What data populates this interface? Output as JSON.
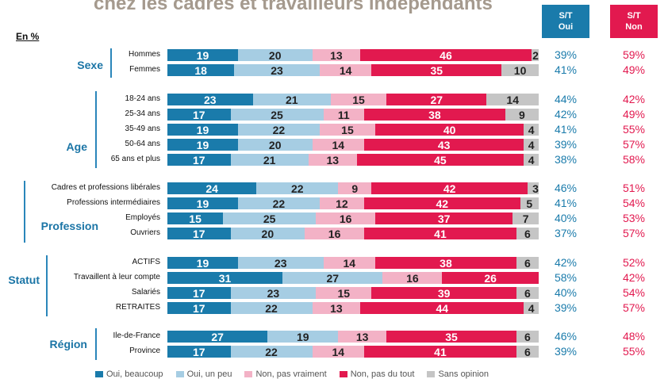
{
  "title": "chez les cadres et travailleurs indépendants",
  "unit_label": "En %",
  "headers": {
    "oui_line1": "S/T",
    "oui_line2": "Oui",
    "non_line1": "S/T",
    "non_line2": "Non"
  },
  "colors": {
    "c0": "#1a7bab",
    "c1": "#a6cde3",
    "c2": "#f3b2c6",
    "c3": "#e2194f",
    "c4": "#c5c5c5"
  },
  "legend": [
    {
      "label": "Oui, beaucoup",
      "color": "#1a7bab"
    },
    {
      "label": "Oui, un peu",
      "color": "#a6cde3"
    },
    {
      "label": "Non, pas vraiment",
      "color": "#f3b2c6"
    },
    {
      "label": "Non, pas du tout",
      "color": "#e2194f"
    },
    {
      "label": "Sans opinion",
      "color": "#c5c5c5"
    }
  ],
  "chart_data": {
    "type": "bar",
    "orientation": "horizontal",
    "stacked": true,
    "xlim": [
      0,
      100
    ],
    "groups": [
      {
        "name": "Sexe",
        "rows": [
          {
            "label": "Hommes",
            "values": [
              19,
              20,
              13,
              46,
              2
            ],
            "st_oui": "39%",
            "st_non": "59%"
          },
          {
            "label": "Femmes",
            "values": [
              18,
              23,
              14,
              35,
              10
            ],
            "st_oui": "41%",
            "st_non": "49%"
          }
        ]
      },
      {
        "name": "Age",
        "rows": [
          {
            "label": "18-24 ans",
            "values": [
              23,
              21,
              15,
              27,
              14
            ],
            "st_oui": "44%",
            "st_non": "42%"
          },
          {
            "label": "25-34 ans",
            "values": [
              17,
              25,
              11,
              38,
              9
            ],
            "st_oui": "42%",
            "st_non": "49%"
          },
          {
            "label": "35-49 ans",
            "values": [
              19,
              22,
              15,
              40,
              4
            ],
            "st_oui": "41%",
            "st_non": "55%"
          },
          {
            "label": "50-64 ans",
            "values": [
              19,
              20,
              14,
              43,
              4
            ],
            "st_oui": "39%",
            "st_non": "57%"
          },
          {
            "label": "65 ans et plus",
            "values": [
              17,
              21,
              13,
              45,
              4
            ],
            "st_oui": "38%",
            "st_non": "58%"
          }
        ]
      },
      {
        "name": "Profession",
        "rows": [
          {
            "label": "Cadres et professions libérales",
            "values": [
              24,
              22,
              9,
              42,
              3
            ],
            "st_oui": "46%",
            "st_non": "51%"
          },
          {
            "label": "Professions intermédiaires",
            "values": [
              19,
              22,
              12,
              42,
              5
            ],
            "st_oui": "41%",
            "st_non": "54%"
          },
          {
            "label": "Employés",
            "values": [
              15,
              25,
              16,
              37,
              7
            ],
            "st_oui": "40%",
            "st_non": "53%"
          },
          {
            "label": "Ouvriers",
            "values": [
              17,
              20,
              16,
              41,
              6
            ],
            "st_oui": "37%",
            "st_non": "57%"
          }
        ]
      },
      {
        "name": "Statut",
        "rows": [
          {
            "label": "ACTIFS",
            "values": [
              19,
              23,
              14,
              38,
              6
            ],
            "st_oui": "42%",
            "st_non": "52%"
          },
          {
            "label": "Travaillent à leur compte",
            "values": [
              31,
              27,
              16,
              26,
              0
            ],
            "st_oui": "58%",
            "st_non": "42%"
          },
          {
            "label": "Salariés",
            "values": [
              17,
              23,
              15,
              39,
              6
            ],
            "st_oui": "40%",
            "st_non": "54%"
          },
          {
            "label": "RETRAITES",
            "values": [
              17,
              22,
              13,
              44,
              4
            ],
            "st_oui": "39%",
            "st_non": "57%"
          }
        ]
      },
      {
        "name": "Région",
        "rows": [
          {
            "label": "Ile-de-France",
            "values": [
              27,
              19,
              13,
              35,
              6
            ],
            "st_oui": "46%",
            "st_non": "48%"
          },
          {
            "label": "Province",
            "values": [
              17,
              22,
              14,
              41,
              6
            ],
            "st_oui": "39%",
            "st_non": "55%"
          }
        ]
      }
    ]
  }
}
